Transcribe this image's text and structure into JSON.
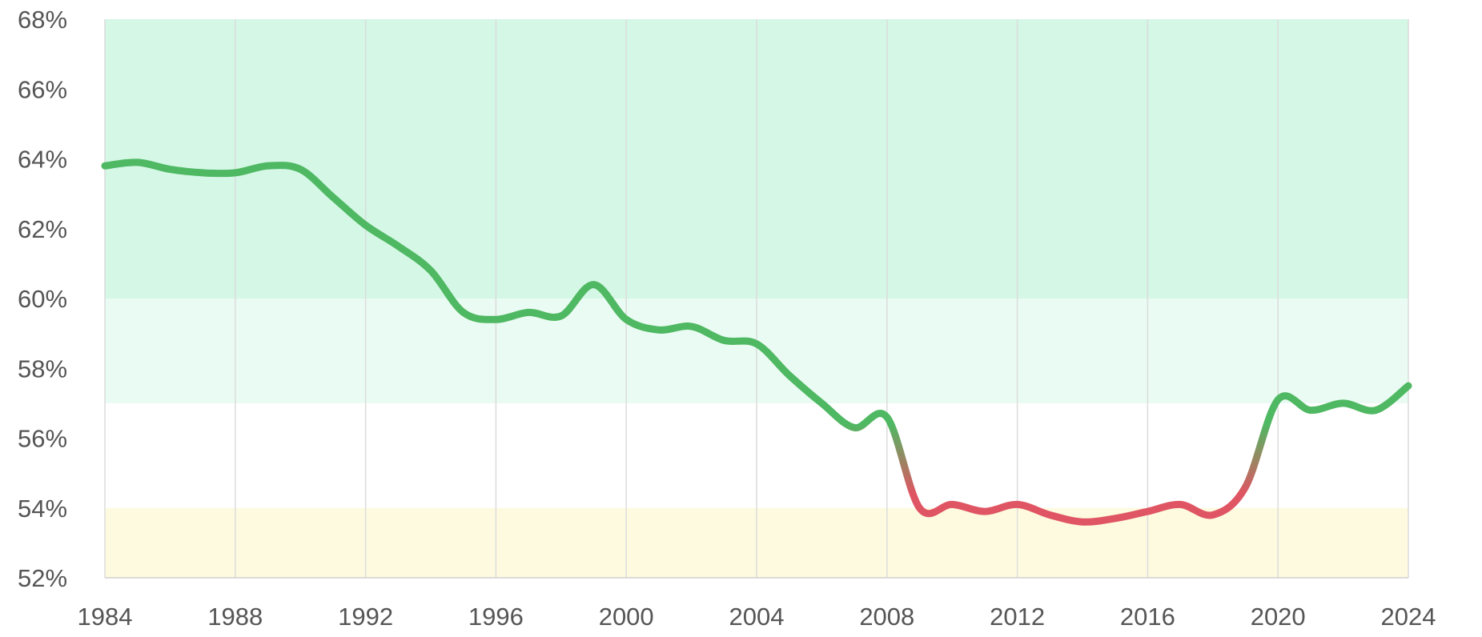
{
  "chart_data": {
    "type": "line",
    "title": "",
    "xlabel": "",
    "ylabel": "",
    "xlim": [
      1984,
      2024
    ],
    "ylim": [
      52,
      68
    ],
    "x_ticks": [
      1984,
      1988,
      1992,
      1996,
      2000,
      2004,
      2008,
      2012,
      2016,
      2020,
      2024
    ],
    "x_tick_labels": [
      "1984",
      "1988",
      "1992",
      "1996",
      "2000",
      "2004",
      "2008",
      "2012",
      "2016",
      "2020",
      "2024"
    ],
    "y_ticks": [
      52,
      54,
      56,
      58,
      60,
      62,
      64,
      66,
      68
    ],
    "y_tick_labels": [
      "52%",
      "54%",
      "56%",
      "58%",
      "60%",
      "62%",
      "64%",
      "66%",
      "68%"
    ],
    "grid": {
      "vertical": true,
      "horizontal": false
    },
    "bands": [
      {
        "name": "band-high",
        "from": 60,
        "to": 68,
        "color": "#d4f7e6"
      },
      {
        "name": "band-mid",
        "from": 57,
        "to": 60,
        "color": "#e9fbf2"
      },
      {
        "name": "band-low",
        "from": 52,
        "to": 54,
        "color": "#fdfae0"
      }
    ],
    "line_colors": {
      "high": "#4fb862",
      "low": "#e05563"
    },
    "series": [
      {
        "x": [
          1984,
          1985,
          1986,
          1987,
          1988,
          1989,
          1990,
          1991,
          1992,
          1993,
          1994,
          1995,
          1996,
          1997,
          1998,
          1999,
          2000,
          2001,
          2002,
          2003,
          2004,
          2005,
          2006,
          2007,
          2008,
          2009,
          2010,
          2011,
          2012,
          2013,
          2014,
          2015,
          2016,
          2017,
          2018,
          2019,
          2020,
          2021,
          2022,
          2023,
          2024
        ],
        "values": [
          63.8,
          63.9,
          63.7,
          63.6,
          63.6,
          63.8,
          63.7,
          62.9,
          62.1,
          61.5,
          60.8,
          59.6,
          59.4,
          59.6,
          59.5,
          60.4,
          59.4,
          59.1,
          59.2,
          58.8,
          58.7,
          57.8,
          57.0,
          56.3,
          56.6,
          54.0,
          54.1,
          53.9,
          54.1,
          53.8,
          53.6,
          53.7,
          53.9,
          54.1,
          53.8,
          54.6,
          57.1,
          56.8,
          57.0,
          56.8,
          57.5
        ]
      }
    ]
  }
}
